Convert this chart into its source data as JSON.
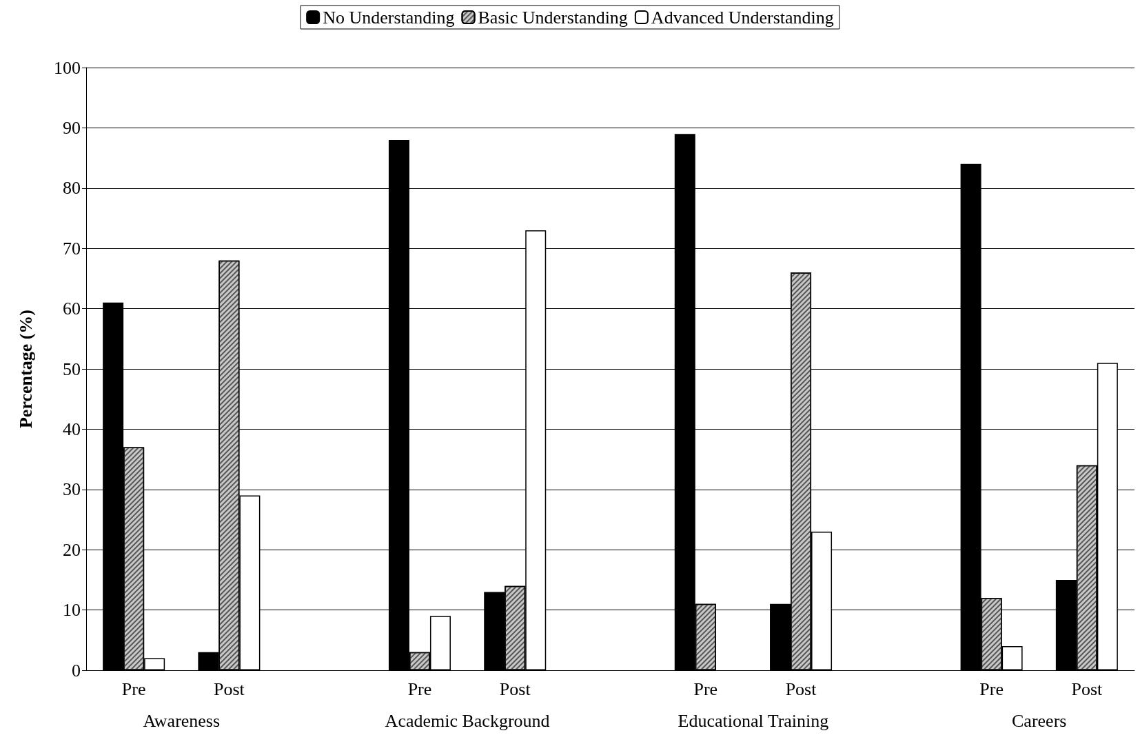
{
  "chart_data": {
    "type": "bar",
    "ylabel": "Percentage (%)",
    "categories": [
      "Pre",
      "Post",
      null,
      "Pre",
      "Post",
      null,
      "Pre",
      "Post",
      null,
      "Pre",
      "Post"
    ],
    "series": [
      {
        "name": "No Understanding",
        "color": "#000000",
        "values": [
          61,
          3,
          null,
          88,
          13,
          null,
          89,
          11,
          null,
          84,
          15
        ]
      },
      {
        "name": "Basic Understanding",
        "color": "#c8c8c8",
        "values": [
          37,
          68,
          null,
          3,
          14,
          null,
          11,
          66,
          null,
          12,
          34
        ]
      },
      {
        "name": "Advanced Understanding",
        "color": "#ffffff",
        "values": [
          2,
          29,
          null,
          9,
          73,
          null,
          null,
          23,
          null,
          4,
          51
        ]
      }
    ],
    "annotations": [
      "Awareness",
      "Academic Background",
      "Educational Training",
      "Careers"
    ],
    "ylim": [
      0,
      100
    ],
    "yticks": [
      0,
      10,
      20,
      30,
      40,
      50,
      60,
      70,
      80,
      90,
      100
    ],
    "grid": "y",
    "legend": "top"
  }
}
